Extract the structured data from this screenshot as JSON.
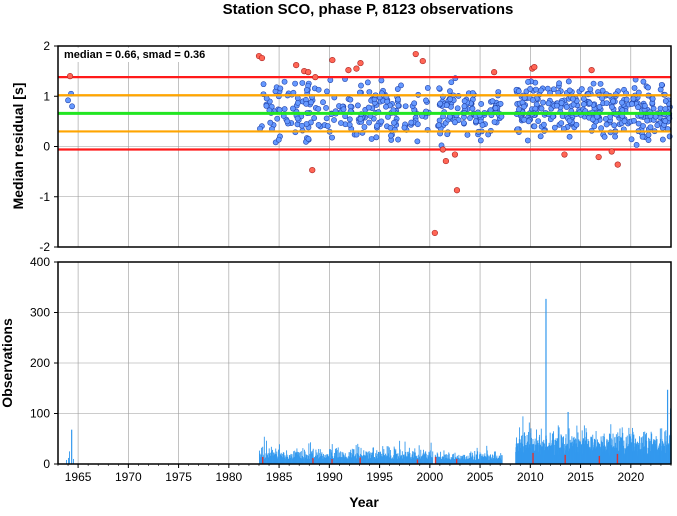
{
  "title": "Station SCO, phase P, 8123 observations",
  "annotation": "median = 0.66, smad = 0.36",
  "colors": {
    "median_line": "#22e622",
    "inner_band": "#ffa500",
    "outer_band": "#ff1a1a",
    "normal_point": "#6699ff",
    "outlier_point": "#ff6655",
    "bars": "#3399ee",
    "outlier_bars": "#dd3333"
  },
  "chart_data": [
    {
      "type": "scatter",
      "ylabel": "Median residual [s]",
      "xlim": [
        1963,
        2024
      ],
      "ylim": [
        -2,
        2
      ],
      "yticks": [
        "-2",
        "-1",
        "0",
        "1",
        "2"
      ],
      "grid": true,
      "reference_lines": [
        {
          "name": "median",
          "y": 0.66
        },
        {
          "name": "inner",
          "y": 1.02
        },
        {
          "name": "inner",
          "y": 0.3
        },
        {
          "name": "outer",
          "y": 1.38
        },
        {
          "name": "outer",
          "y": -0.06
        }
      ],
      "outliers": [
        {
          "x": 1964.2,
          "y": 1.4
        },
        {
          "x": 1983.0,
          "y": 1.8
        },
        {
          "x": 1983.3,
          "y": 1.76
        },
        {
          "x": 1986.7,
          "y": 1.62
        },
        {
          "x": 1987.5,
          "y": 1.5
        },
        {
          "x": 1987.9,
          "y": 1.48
        },
        {
          "x": 1988.3,
          "y": -0.47
        },
        {
          "x": 1988.6,
          "y": 1.38
        },
        {
          "x": 1990.3,
          "y": 1.72
        },
        {
          "x": 1991.9,
          "y": 1.52
        },
        {
          "x": 1992.7,
          "y": 1.55
        },
        {
          "x": 1993.1,
          "y": 1.66
        },
        {
          "x": 1998.6,
          "y": 1.84
        },
        {
          "x": 1999.3,
          "y": 1.7
        },
        {
          "x": 2000.5,
          "y": -1.72
        },
        {
          "x": 2001.3,
          "y": -0.06
        },
        {
          "x": 2001.6,
          "y": -0.29
        },
        {
          "x": 2002.5,
          "y": -0.16
        },
        {
          "x": 2002.7,
          "y": -0.87
        },
        {
          "x": 2006.4,
          "y": 1.48
        },
        {
          "x": 2010.2,
          "y": 1.55
        },
        {
          "x": 2010.4,
          "y": 1.58
        },
        {
          "x": 2013.4,
          "y": -0.16
        },
        {
          "x": 2016.1,
          "y": 1.52
        },
        {
          "x": 2016.8,
          "y": -0.21
        },
        {
          "x": 2018.1,
          "y": -0.1
        },
        {
          "x": 2018.7,
          "y": -0.36
        }
      ]
    },
    {
      "type": "bar",
      "ylabel": "Observations",
      "xlabel": "Year",
      "xlim": [
        1963,
        2024
      ],
      "ylim": [
        0,
        400
      ],
      "yticks": [
        "0",
        "100",
        "200",
        "300",
        "400"
      ],
      "xticks": [
        "1965",
        "1970",
        "1975",
        "1980",
        "1985",
        "1990",
        "1995",
        "2000",
        "2005",
        "2010",
        "2015",
        "2020"
      ],
      "grid": true,
      "spikes": [
        {
          "x": 1964.3,
          "value": 68
        },
        {
          "x": 2011.5,
          "value": 327
        },
        {
          "x": 2013.7,
          "value": 103
        },
        {
          "x": 2023.6,
          "value": 147
        },
        {
          "x": 2023.9,
          "value": 110
        }
      ]
    }
  ]
}
